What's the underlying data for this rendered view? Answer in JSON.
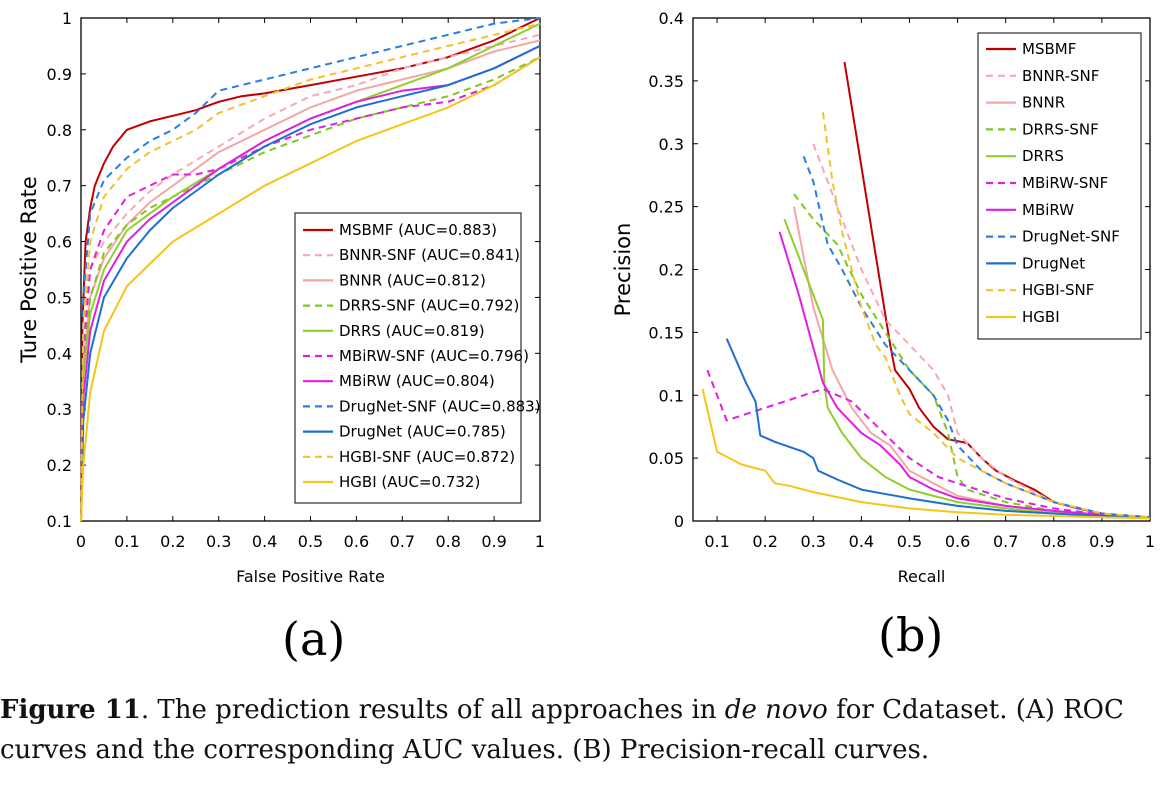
{
  "panel_a_label": "(a)",
  "panel_b_label": "(b)",
  "caption": {
    "prefix": "Figure 11",
    "text1": ". The prediction results of all approaches in ",
    "italic": "de novo",
    "text2": " for Cdataset. (A) ROC curves and the corresponding AUC values. (B) Precision-recall curves."
  },
  "chart_data": [
    {
      "type": "line",
      "xlabel": "False Positive Rate",
      "ylabel": "Ture Positive Rate",
      "xlim": [
        0,
        1
      ],
      "ylim": [
        0.1,
        1
      ],
      "xticks": [
        "0",
        "0.1",
        "0.2",
        "0.3",
        "0.4",
        "0.5",
        "0.6",
        "0.7",
        "0.8",
        "0.9",
        "1"
      ],
      "yticks": [
        "0.1",
        "0.2",
        "0.3",
        "0.4",
        "0.5",
        "0.6",
        "0.7",
        "0.8",
        "0.9",
        "1"
      ],
      "legend_position": "bottom-right",
      "series": [
        {
          "name": "MSBMF (AUC=0.883)",
          "color": "#c00000",
          "dash": false,
          "x": [
            0,
            0.003,
            0.01,
            0.02,
            0.03,
            0.05,
            0.07,
            0.1,
            0.15,
            0.2,
            0.25,
            0.3,
            0.35,
            0.4,
            0.5,
            0.6,
            0.7,
            0.8,
            0.9,
            0.95,
            1
          ],
          "y": [
            0.1,
            0.45,
            0.6,
            0.66,
            0.7,
            0.74,
            0.77,
            0.8,
            0.815,
            0.825,
            0.835,
            0.85,
            0.86,
            0.865,
            0.88,
            0.895,
            0.91,
            0.93,
            0.96,
            0.98,
            1
          ]
        },
        {
          "name": "BNNR-SNF (AUC=0.841)",
          "color": "#f7a8b8",
          "dash": true,
          "x": [
            0,
            0.005,
            0.02,
            0.05,
            0.1,
            0.15,
            0.2,
            0.3,
            0.4,
            0.5,
            0.6,
            0.7,
            0.8,
            0.9,
            1
          ],
          "y": [
            0.1,
            0.42,
            0.55,
            0.6,
            0.65,
            0.69,
            0.72,
            0.77,
            0.82,
            0.86,
            0.88,
            0.91,
            0.93,
            0.95,
            0.97
          ]
        },
        {
          "name": "BNNR (AUC=0.812)",
          "color": "#f4a6a6",
          "dash": false,
          "x": [
            0,
            0.005,
            0.02,
            0.05,
            0.1,
            0.15,
            0.2,
            0.3,
            0.4,
            0.5,
            0.6,
            0.7,
            0.8,
            0.9,
            1
          ],
          "y": [
            0.1,
            0.38,
            0.5,
            0.57,
            0.63,
            0.67,
            0.7,
            0.76,
            0.8,
            0.84,
            0.87,
            0.89,
            0.91,
            0.94,
            0.96
          ]
        },
        {
          "name": "DRRS-SNF (AUC=0.792)",
          "color": "#7cc81e",
          "dash": true,
          "x": [
            0,
            0.005,
            0.02,
            0.05,
            0.1,
            0.15,
            0.2,
            0.3,
            0.4,
            0.5,
            0.6,
            0.7,
            0.8,
            0.9,
            1
          ],
          "y": [
            0.1,
            0.36,
            0.5,
            0.58,
            0.63,
            0.66,
            0.68,
            0.72,
            0.76,
            0.79,
            0.82,
            0.84,
            0.86,
            0.89,
            0.93
          ]
        },
        {
          "name": "DRRS (AUC=0.819)",
          "color": "#8fcf2b",
          "dash": false,
          "x": [
            0,
            0.005,
            0.02,
            0.05,
            0.1,
            0.15,
            0.2,
            0.3,
            0.4,
            0.5,
            0.6,
            0.7,
            0.8,
            0.9,
            1
          ],
          "y": [
            0.1,
            0.36,
            0.47,
            0.55,
            0.62,
            0.65,
            0.68,
            0.73,
            0.78,
            0.82,
            0.85,
            0.88,
            0.91,
            0.95,
            0.99
          ]
        },
        {
          "name": "MBiRW-SNF (AUC=0.796)",
          "color": "#e020e0",
          "dash": true,
          "x": [
            0,
            0.005,
            0.02,
            0.05,
            0.1,
            0.15,
            0.2,
            0.25,
            0.3,
            0.35,
            0.4,
            0.5,
            0.6,
            0.7,
            0.8,
            0.9,
            1
          ],
          "y": [
            0.1,
            0.4,
            0.55,
            0.62,
            0.68,
            0.7,
            0.72,
            0.72,
            0.73,
            0.75,
            0.77,
            0.8,
            0.82,
            0.84,
            0.85,
            0.88,
            0.93
          ]
        },
        {
          "name": "MBiRW (AUC=0.804)",
          "color": "#e020e0",
          "dash": false,
          "x": [
            0,
            0.005,
            0.02,
            0.05,
            0.1,
            0.15,
            0.2,
            0.3,
            0.4,
            0.5,
            0.6,
            0.7,
            0.8,
            0.9,
            1
          ],
          "y": [
            0.1,
            0.32,
            0.44,
            0.53,
            0.6,
            0.64,
            0.67,
            0.73,
            0.78,
            0.82,
            0.85,
            0.87,
            0.88,
            0.91,
            0.95
          ]
        },
        {
          "name": "DrugNet-SNF (AUC=0.883)",
          "color": "#2a7de1",
          "dash": true,
          "x": [
            0,
            0.005,
            0.02,
            0.05,
            0.1,
            0.15,
            0.2,
            0.25,
            0.3,
            0.4,
            0.5,
            0.6,
            0.7,
            0.8,
            0.9,
            1
          ],
          "y": [
            0.1,
            0.5,
            0.65,
            0.71,
            0.75,
            0.78,
            0.8,
            0.83,
            0.87,
            0.89,
            0.91,
            0.93,
            0.95,
            0.97,
            0.99,
            1
          ]
        },
        {
          "name": "DrugNet (AUC=0.785)",
          "color": "#1f6fd1",
          "dash": false,
          "x": [
            0,
            0.005,
            0.02,
            0.05,
            0.1,
            0.15,
            0.2,
            0.3,
            0.4,
            0.5,
            0.6,
            0.7,
            0.8,
            0.9,
            1
          ],
          "y": [
            0.1,
            0.28,
            0.4,
            0.5,
            0.57,
            0.62,
            0.66,
            0.72,
            0.77,
            0.81,
            0.84,
            0.86,
            0.88,
            0.91,
            0.95
          ]
        },
        {
          "name": "HGBI-SNF (AUC=0.872)",
          "color": "#f2c12e",
          "dash": true,
          "x": [
            0,
            0.005,
            0.02,
            0.05,
            0.1,
            0.15,
            0.2,
            0.25,
            0.3,
            0.4,
            0.5,
            0.6,
            0.7,
            0.8,
            0.9,
            1
          ],
          "y": [
            0.1,
            0.45,
            0.6,
            0.68,
            0.73,
            0.76,
            0.78,
            0.8,
            0.83,
            0.86,
            0.89,
            0.91,
            0.93,
            0.95,
            0.97,
            0.99
          ]
        },
        {
          "name": "HGBI (AUC=0.732)",
          "color": "#f5c518",
          "dash": false,
          "x": [
            0,
            0.005,
            0.02,
            0.05,
            0.1,
            0.15,
            0.2,
            0.3,
            0.4,
            0.5,
            0.6,
            0.7,
            0.8,
            0.9,
            1
          ],
          "y": [
            0.1,
            0.2,
            0.33,
            0.44,
            0.52,
            0.56,
            0.6,
            0.65,
            0.7,
            0.74,
            0.78,
            0.81,
            0.84,
            0.88,
            0.93
          ]
        }
      ]
    },
    {
      "type": "line",
      "xlabel": "Recall",
      "ylabel": "Precision",
      "xlim": [
        0.05,
        1
      ],
      "ylim": [
        0,
        0.4
      ],
      "xticks": [
        "0.1",
        "0.2",
        "0.3",
        "0.4",
        "0.5",
        "0.6",
        "0.7",
        "0.8",
        "0.9",
        "1"
      ],
      "yticks": [
        "0",
        "0.05",
        "0.1",
        "0.15",
        "0.2",
        "0.25",
        "0.3",
        "0.35",
        "0.4"
      ],
      "legend_position": "top-right",
      "series": [
        {
          "name": "MSBMF",
          "color": "#c00000",
          "dash": false,
          "x": [
            0.365,
            0.46,
            0.47,
            0.5,
            0.52,
            0.55,
            0.58,
            0.62,
            0.65,
            0.68,
            0.72,
            0.76,
            0.8,
            0.85,
            0.9,
            0.95,
            1
          ],
          "y": [
            0.365,
            0.14,
            0.12,
            0.105,
            0.09,
            0.075,
            0.065,
            0.062,
            0.05,
            0.04,
            0.032,
            0.025,
            0.015,
            0.01,
            0.006,
            0.004,
            0.003
          ]
        },
        {
          "name": "BNNR-SNF",
          "color": "#f7a8b8",
          "dash": true,
          "x": [
            0.3,
            0.35,
            0.4,
            0.45,
            0.5,
            0.55,
            0.58,
            0.6,
            0.65,
            0.7,
            0.8,
            0.9,
            1
          ],
          "y": [
            0.3,
            0.25,
            0.2,
            0.16,
            0.14,
            0.12,
            0.1,
            0.07,
            0.05,
            0.035,
            0.015,
            0.006,
            0.003
          ]
        },
        {
          "name": "BNNR",
          "color": "#f4a6a6",
          "dash": false,
          "x": [
            0.26,
            0.3,
            0.34,
            0.38,
            0.42,
            0.46,
            0.5,
            0.6,
            0.7,
            0.8,
            0.9,
            1
          ],
          "y": [
            0.25,
            0.17,
            0.12,
            0.09,
            0.07,
            0.06,
            0.04,
            0.02,
            0.012,
            0.007,
            0.004,
            0.003
          ]
        },
        {
          "name": "DRRS-SNF",
          "color": "#7cc81e",
          "dash": true,
          "x": [
            0.26,
            0.3,
            0.35,
            0.4,
            0.45,
            0.5,
            0.55,
            0.58,
            0.6,
            0.62,
            0.7,
            0.8,
            0.9,
            1
          ],
          "y": [
            0.26,
            0.24,
            0.22,
            0.18,
            0.15,
            0.12,
            0.1,
            0.07,
            0.035,
            0.025,
            0.015,
            0.008,
            0.004,
            0.003
          ]
        },
        {
          "name": "DRRS",
          "color": "#8fcf2b",
          "dash": false,
          "x": [
            0.24,
            0.28,
            0.32,
            0.323,
            0.33,
            0.36,
            0.4,
            0.45,
            0.5,
            0.6,
            0.7,
            0.8,
            0.9,
            1
          ],
          "y": [
            0.24,
            0.2,
            0.16,
            0.11,
            0.09,
            0.07,
            0.05,
            0.035,
            0.025,
            0.015,
            0.01,
            0.006,
            0.004,
            0.003
          ]
        },
        {
          "name": "MBiRW-SNF",
          "color": "#e020e0",
          "dash": true,
          "x": [
            0.08,
            0.12,
            0.2,
            0.28,
            0.32,
            0.38,
            0.42,
            0.46,
            0.5,
            0.56,
            0.6,
            0.7,
            0.8,
            0.9,
            1
          ],
          "y": [
            0.12,
            0.08,
            0.09,
            0.1,
            0.105,
            0.095,
            0.08,
            0.065,
            0.05,
            0.035,
            0.03,
            0.018,
            0.01,
            0.005,
            0.003
          ]
        },
        {
          "name": "MBiRW",
          "color": "#e020e0",
          "dash": false,
          "x": [
            0.23,
            0.27,
            0.32,
            0.35,
            0.4,
            0.44,
            0.48,
            0.5,
            0.55,
            0.6,
            0.7,
            0.8,
            0.9,
            1
          ],
          "y": [
            0.23,
            0.18,
            0.11,
            0.09,
            0.07,
            0.06,
            0.045,
            0.035,
            0.025,
            0.018,
            0.012,
            0.008,
            0.005,
            0.003
          ]
        },
        {
          "name": "DrugNet-SNF",
          "color": "#2a7de1",
          "dash": true,
          "x": [
            0.28,
            0.3,
            0.33,
            0.36,
            0.4,
            0.45,
            0.5,
            0.55,
            0.58,
            0.6,
            0.65,
            0.7,
            0.8,
            0.9,
            1
          ],
          "y": [
            0.29,
            0.27,
            0.22,
            0.2,
            0.17,
            0.14,
            0.12,
            0.1,
            0.08,
            0.06,
            0.04,
            0.03,
            0.015,
            0.006,
            0.003
          ]
        },
        {
          "name": "DrugNet",
          "color": "#1f6fd1",
          "dash": false,
          "x": [
            0.12,
            0.16,
            0.18,
            0.19,
            0.22,
            0.28,
            0.3,
            0.31,
            0.35,
            0.4,
            0.5,
            0.6,
            0.7,
            0.8,
            0.9,
            1
          ],
          "y": [
            0.145,
            0.11,
            0.095,
            0.068,
            0.063,
            0.055,
            0.05,
            0.04,
            0.033,
            0.025,
            0.018,
            0.012,
            0.008,
            0.006,
            0.004,
            0.003
          ]
        },
        {
          "name": "HGBI-SNF",
          "color": "#f2c12e",
          "dash": true,
          "x": [
            0.32,
            0.34,
            0.36,
            0.38,
            0.4,
            0.43,
            0.45,
            0.48,
            0.5,
            0.55,
            0.6,
            0.7,
            0.8,
            0.9,
            1
          ],
          "y": [
            0.325,
            0.27,
            0.23,
            0.2,
            0.17,
            0.14,
            0.13,
            0.1,
            0.085,
            0.07,
            0.05,
            0.03,
            0.015,
            0.006,
            0.003
          ]
        },
        {
          "name": "HGBI",
          "color": "#f5c518",
          "dash": false,
          "x": [
            0.07,
            0.1,
            0.15,
            0.2,
            0.22,
            0.25,
            0.3,
            0.4,
            0.5,
            0.6,
            0.7,
            0.8,
            0.9,
            1
          ],
          "y": [
            0.105,
            0.055,
            0.045,
            0.04,
            0.03,
            0.028,
            0.023,
            0.015,
            0.01,
            0.007,
            0.005,
            0.004,
            0.003,
            0.002
          ]
        }
      ]
    }
  ]
}
